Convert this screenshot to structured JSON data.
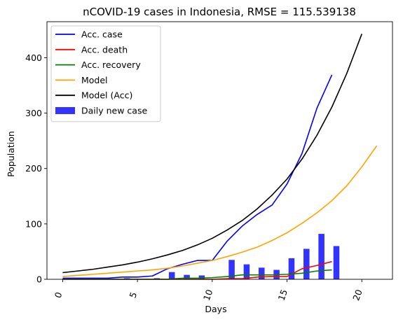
{
  "chart_data": {
    "type": "line",
    "title": "nCOVID-19 cases in Indonesia, RMSE = 115.539138",
    "xlabel": "Days",
    "ylabel": "Population",
    "xlim": [
      -1.05,
      22.05
    ],
    "ylim": [
      0,
      465
    ],
    "xticks": [
      0,
      5,
      10,
      15,
      20
    ],
    "yticks": [
      0,
      100,
      200,
      300,
      400
    ],
    "grid": false,
    "legend_position": "top-left",
    "series": [
      {
        "name": "Acc. case",
        "kind": "line",
        "color": "#0000ff",
        "x": [
          0,
          1,
          2,
          3,
          4,
          5,
          6,
          7,
          8,
          9,
          10,
          11,
          12,
          13,
          14,
          15,
          16,
          17,
          18
        ],
        "y": [
          2,
          2,
          2,
          2,
          4,
          4,
          6,
          19,
          27,
          34,
          34,
          69,
          96,
          117,
          134,
          172,
          227,
          309,
          369
        ]
      },
      {
        "name": "Acc. death",
        "kind": "line",
        "color": "#ff0000",
        "x": [
          0,
          1,
          2,
          3,
          4,
          5,
          6,
          7,
          8,
          9,
          10,
          11,
          12,
          13,
          14,
          15,
          16,
          17,
          18
        ],
        "y": [
          0,
          0,
          0,
          0,
          0,
          0,
          0,
          0,
          0,
          0,
          0,
          1,
          1,
          4,
          5,
          5,
          19,
          25,
          32
        ]
      },
      {
        "name": "Acc. recovery",
        "kind": "line",
        "color": "#008000",
        "x": [
          0,
          1,
          2,
          3,
          4,
          5,
          6,
          7,
          8,
          9,
          10,
          11,
          12,
          13,
          14,
          15,
          16,
          17,
          18
        ],
        "y": [
          0,
          0,
          0,
          0,
          0,
          0,
          0,
          0,
          2,
          2,
          3,
          5,
          8,
          8,
          8,
          9,
          11,
          15,
          17
        ]
      },
      {
        "name": "Model",
        "kind": "line",
        "color": "#ffa500",
        "x": [
          0,
          1,
          2,
          3,
          4,
          5,
          6,
          7,
          8,
          9,
          10,
          11,
          12,
          13,
          14,
          15,
          16,
          17,
          18,
          19,
          20,
          21
        ],
        "y": [
          5,
          7,
          9,
          11,
          13,
          15,
          17,
          20,
          24,
          29,
          34,
          41,
          49,
          58,
          70,
          84,
          101,
          120,
          142,
          169,
          203,
          241
        ]
      },
      {
        "name": "Model (Acc)",
        "kind": "line",
        "color": "#000000",
        "x": [
          0,
          1,
          2,
          3,
          4,
          5,
          6,
          7,
          8,
          9,
          10,
          11,
          12,
          13,
          14,
          15,
          16,
          17,
          18,
          19,
          20
        ],
        "y": [
          12,
          15,
          18,
          22,
          26,
          31,
          37,
          44,
          52,
          62,
          74,
          89,
          106,
          127,
          152,
          181,
          217,
          260,
          311,
          372,
          443
        ]
      },
      {
        "name": "Daily new case",
        "kind": "bar",
        "color": "#0000ff",
        "x": [
          0,
          1,
          2,
          3,
          4,
          5,
          6,
          7,
          8,
          9,
          10,
          11,
          12,
          13,
          14,
          15,
          16,
          17,
          18
        ],
        "y": [
          0,
          0,
          0,
          0,
          2,
          0,
          2,
          13,
          8,
          7,
          0,
          35,
          27,
          21,
          17,
          38,
          55,
          82,
          60
        ]
      }
    ]
  }
}
